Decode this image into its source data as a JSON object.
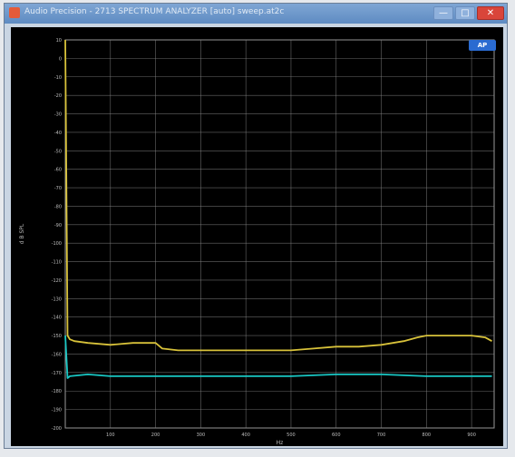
{
  "window": {
    "title": "Audio Precision - 2713 SPECTRUM ANALYZER [auto] sweep.at2c",
    "minimize_glyph": "—",
    "maximize_glyph": "□",
    "close_glyph": "✕"
  },
  "logo": {
    "text": "AP"
  },
  "chart_data": {
    "type": "line",
    "ylabel": "d B SPL",
    "xlabel": "Hz",
    "xlim": [
      0,
      950
    ],
    "ylim": [
      -200,
      10
    ],
    "x_ticks": [
      "100",
      "200",
      "300",
      "400",
      "500",
      "600",
      "700",
      "800",
      "900"
    ],
    "y_ticks": [
      "10",
      "0",
      "-10",
      "-20",
      "-30",
      "-40",
      "-50",
      "-60",
      "-70",
      "-80",
      "-90",
      "-100",
      "-110",
      "-120",
      "-130",
      "-140",
      "-150",
      "-160",
      "-170",
      "-180",
      "-190",
      "-200"
    ],
    "series": [
      {
        "color": "#d8c23a",
        "x": [
          0,
          5,
          10,
          20,
          50,
          100,
          150,
          200,
          215,
          250,
          300,
          350,
          400,
          450,
          500,
          550,
          600,
          650,
          700,
          750,
          780,
          800,
          850,
          900,
          930,
          945
        ],
        "y": [
          10,
          -150,
          -152,
          -153,
          -154,
          -155,
          -154,
          -154,
          -157,
          -158,
          -158,
          -158,
          -158,
          -158,
          -158,
          -157,
          -156,
          -156,
          -155,
          -153,
          -151,
          -150,
          -150,
          -150,
          -151,
          -153
        ]
      },
      {
        "color": "#19c7c4",
        "x": [
          0,
          5,
          10,
          50,
          100,
          200,
          300,
          400,
          500,
          600,
          700,
          800,
          900,
          945
        ],
        "y": [
          -150,
          -173,
          -172,
          -171,
          -172,
          -172,
          -172,
          -172,
          -172,
          -171,
          -171,
          -172,
          -172,
          -172
        ]
      }
    ]
  }
}
